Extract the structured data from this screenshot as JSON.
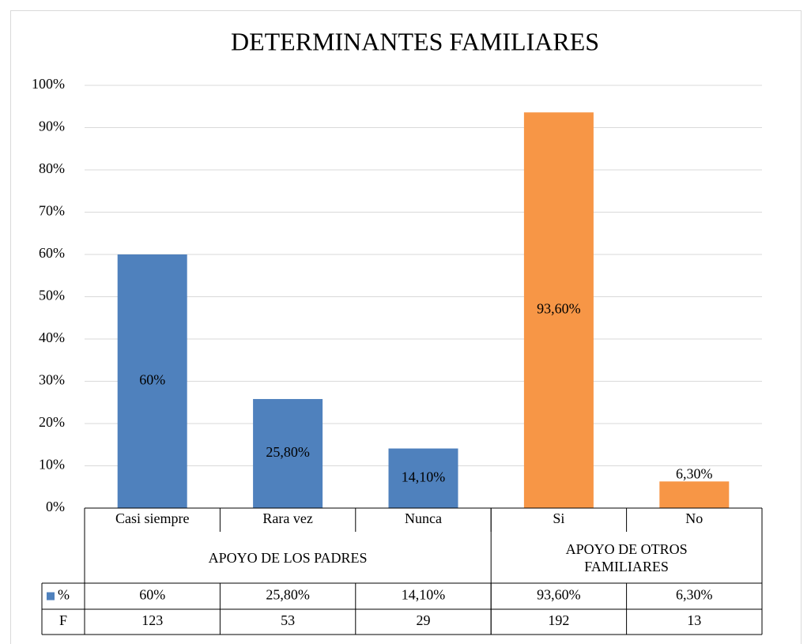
{
  "chart_data": {
    "type": "bar",
    "title": "DETERMINANTES FAMILIARES",
    "categories": [
      "Casi siempre",
      "Rara vez",
      "Nunca",
      "Si",
      "No"
    ],
    "groups": [
      {
        "label": "APOYO DE LOS PADRES",
        "span": 3
      },
      {
        "label": "APOYO DE OTROS FAMILIARES",
        "span": 2
      }
    ],
    "series": [
      {
        "name": "%",
        "color": "#4f81bd",
        "values": [
          60,
          25.8,
          14.1,
          93.6,
          6.3
        ],
        "value_labels": [
          "60%",
          "25,80%",
          "14,10%",
          "93,60%",
          "6,30%"
        ],
        "colors": [
          "#4f81bd",
          "#4f81bd",
          "#4f81bd",
          "#f79646",
          "#f79646"
        ]
      }
    ],
    "data_table": [
      {
        "name": "F",
        "values": [
          123,
          53,
          29,
          192,
          13
        ]
      }
    ],
    "ylim": [
      0,
      100
    ],
    "yticks": [
      {
        "value": 0,
        "label": "0%"
      },
      {
        "value": 10,
        "label": "10%"
      },
      {
        "value": 20,
        "label": "20%"
      },
      {
        "value": 30,
        "label": "30%"
      },
      {
        "value": 40,
        "label": "40%"
      },
      {
        "value": 50,
        "label": "50%"
      },
      {
        "value": 60,
        "label": "60%"
      },
      {
        "value": 70,
        "label": "70%"
      },
      {
        "value": 80,
        "label": "80%"
      },
      {
        "value": 90,
        "label": "90%"
      },
      {
        "value": 100,
        "label": "100%"
      }
    ],
    "grid": true
  }
}
